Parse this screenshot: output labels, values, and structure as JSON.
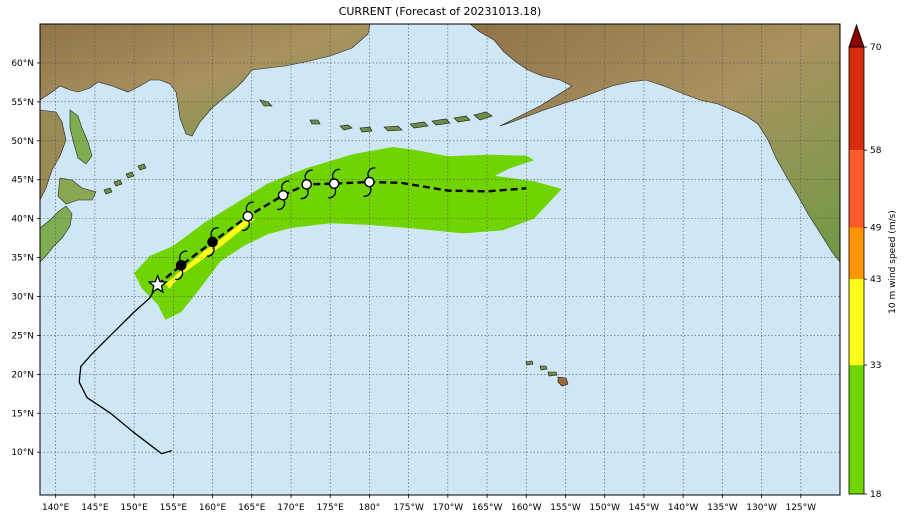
{
  "title": "CURRENT (Forecast of 20231013.18)",
  "map": {
    "lon_min": 138,
    "lon_max": 240,
    "lat_min": 4.5,
    "lat_max": 65,
    "x_ticks": [
      {
        "lon": 140,
        "label": "140°E"
      },
      {
        "lon": 145,
        "label": "145°E"
      },
      {
        "lon": 150,
        "label": "150°E"
      },
      {
        "lon": 155,
        "label": "155°E"
      },
      {
        "lon": 160,
        "label": "160°E"
      },
      {
        "lon": 165,
        "label": "165°E"
      },
      {
        "lon": 170,
        "label": "170°E"
      },
      {
        "lon": 175,
        "label": "175°E"
      },
      {
        "lon": 180,
        "label": "180°"
      },
      {
        "lon": 185,
        "label": "175°W"
      },
      {
        "lon": 190,
        "label": "170°W"
      },
      {
        "lon": 195,
        "label": "165°W"
      },
      {
        "lon": 200,
        "label": "160°W"
      },
      {
        "lon": 205,
        "label": "155°W"
      },
      {
        "lon": 210,
        "label": "150°W"
      },
      {
        "lon": 215,
        "label": "145°W"
      },
      {
        "lon": 220,
        "label": "140°W"
      },
      {
        "lon": 225,
        "label": "135°W"
      },
      {
        "lon": 230,
        "label": "130°W"
      },
      {
        "lon": 235,
        "label": "125°W"
      }
    ],
    "y_ticks": [
      {
        "lat": 10,
        "label": "10°N"
      },
      {
        "lat": 15,
        "label": "15°N"
      },
      {
        "lat": 20,
        "label": "20°N"
      },
      {
        "lat": 25,
        "label": "25°N"
      },
      {
        "lat": 30,
        "label": "30°N"
      },
      {
        "lat": 35,
        "label": "35°N"
      },
      {
        "lat": 40,
        "label": "40°N"
      },
      {
        "lat": 45,
        "label": "45°N"
      },
      {
        "lat": 50,
        "label": "50°N"
      },
      {
        "lat": 55,
        "label": "55°N"
      },
      {
        "lat": 60,
        "label": "60°N"
      }
    ],
    "colors": {
      "ocean": "#cfe6f5",
      "land": "#a8925f",
      "land_green": "#7fae52",
      "grid": "#555555"
    }
  },
  "track": {
    "past": [
      [
        154.8,
        10.2
      ],
      [
        153.5,
        9.8
      ],
      [
        150,
        12.5
      ],
      [
        147,
        15
      ],
      [
        144,
        17
      ],
      [
        143,
        19
      ],
      [
        143.2,
        21
      ],
      [
        144.5,
        22.5
      ],
      [
        146,
        24
      ],
      [
        148,
        26
      ],
      [
        150,
        28
      ],
      [
        152,
        29.8
      ],
      [
        153,
        31.5
      ]
    ],
    "forecast": [
      [
        153,
        31.5
      ],
      [
        156,
        34
      ],
      [
        160,
        37
      ],
      [
        164.5,
        40.3
      ],
      [
        169,
        43
      ],
      [
        172,
        44.4
      ],
      [
        175.5,
        44.5
      ],
      [
        180,
        44.7
      ],
      [
        184,
        44.6
      ],
      [
        190,
        43.6
      ],
      [
        195,
        43.5
      ],
      [
        200,
        43.9
      ]
    ],
    "current": [
      153,
      31.5
    ],
    "markers": [
      {
        "pos": [
          156,
          34
        ],
        "fill": "#000000"
      },
      {
        "pos": [
          160,
          37
        ],
        "fill": "#000000"
      },
      {
        "pos": [
          164.5,
          40.3
        ],
        "fill": "#ffffff"
      },
      {
        "pos": [
          169,
          43
        ],
        "fill": "#ffffff"
      },
      {
        "pos": [
          172,
          44.4
        ],
        "fill": "#ffffff"
      },
      {
        "pos": [
          175.5,
          44.5
        ],
        "fill": "#ffffff"
      },
      {
        "pos": [
          180,
          44.7
        ],
        "fill": "#ffffff"
      }
    ]
  },
  "wind_swath": {
    "green": [
      [
        150,
        33
      ],
      [
        152,
        35.2
      ],
      [
        155,
        36.5
      ],
      [
        159,
        39.5
      ],
      [
        163,
        42
      ],
      [
        167,
        44.5
      ],
      [
        172,
        46.5
      ],
      [
        178,
        48.3
      ],
      [
        183,
        49.2
      ],
      [
        186,
        48.8
      ],
      [
        190,
        48
      ],
      [
        195,
        48.2
      ],
      [
        200,
        48.1
      ],
      [
        201,
        47.5
      ],
      [
        198,
        46.5
      ],
      [
        196,
        45.5
      ],
      [
        201,
        44.8
      ],
      [
        204.5,
        43.8
      ],
      [
        201,
        40
      ],
      [
        197,
        38.5
      ],
      [
        192,
        38.1
      ],
      [
        185,
        38.8
      ],
      [
        180,
        39.2
      ],
      [
        175,
        39.4
      ],
      [
        170,
        38.8
      ],
      [
        167,
        38
      ],
      [
        164,
        36.5
      ],
      [
        161,
        34.5
      ],
      [
        158,
        30.5
      ],
      [
        156,
        28
      ],
      [
        154,
        27
      ],
      [
        153,
        29
      ],
      [
        151,
        31
      ]
    ],
    "yellow": [
      [
        154,
        31.6
      ],
      [
        156.5,
        33.8
      ],
      [
        159,
        35.9
      ],
      [
        161,
        37.3
      ],
      [
        162.5,
        38.5
      ],
      [
        164.5,
        40.2
      ],
      [
        165.5,
        40
      ],
      [
        163,
        38
      ],
      [
        161,
        36.4
      ],
      [
        158.5,
        34.6
      ],
      [
        156,
        32.8
      ],
      [
        154.5,
        31
      ]
    ]
  },
  "colorbar": {
    "label": "10 m wind speed (m/s)",
    "ticks": [
      "18",
      "33",
      "43",
      "49",
      "58",
      "70"
    ],
    "bins": [
      {
        "from": 18,
        "to": 33,
        "color": "#6fd400"
      },
      {
        "from": 33,
        "to": 43,
        "color": "#ffff19"
      },
      {
        "from": 43,
        "to": 49,
        "color": "#ff9600"
      },
      {
        "from": 49,
        "to": 58,
        "color": "#ff5a28"
      },
      {
        "from": 58,
        "to": 70,
        "color": "#d82d0c"
      }
    ],
    "extend_color": "#8b0000"
  }
}
